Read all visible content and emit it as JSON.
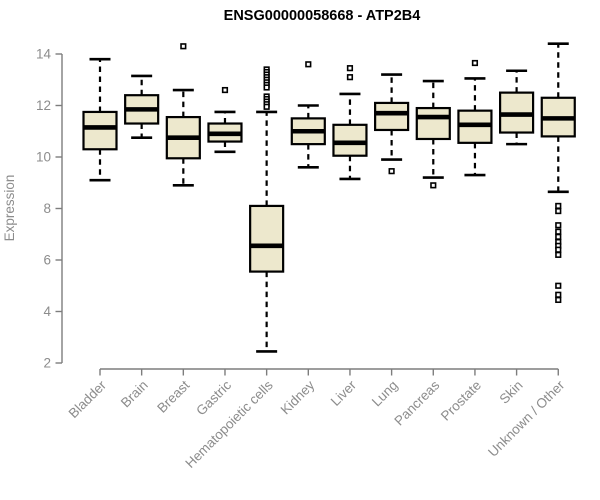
{
  "header": {
    "title": "ENSG00000058668 - ATP2B4"
  },
  "chart_data": {
    "type": "boxplot",
    "title": "ENSG00000058668 - ATP2B4",
    "xlabel": "",
    "ylabel": "Expression",
    "ylim": [
      2,
      14
    ],
    "y_ticks": [
      2,
      4,
      6,
      8,
      10,
      12,
      14
    ],
    "grid": false,
    "legend": "none",
    "categories": [
      "Bladder",
      "Brain",
      "Breast",
      "Gastric",
      "Hematopoietic cells",
      "Kidney",
      "Liver",
      "Lung",
      "Pancreas",
      "Prostate",
      "Skin",
      "Unknown / Other"
    ],
    "series": [
      {
        "name": "Bladder",
        "whisker_low": 9.1,
        "q1": 10.3,
        "median": 11.15,
        "q3": 11.75,
        "whisker_high": 13.8,
        "outliers": []
      },
      {
        "name": "Brain",
        "whisker_low": 10.75,
        "q1": 11.3,
        "median": 11.85,
        "q3": 12.4,
        "whisker_high": 13.15,
        "outliers": []
      },
      {
        "name": "Breast",
        "whisker_low": 8.9,
        "q1": 9.95,
        "median": 10.75,
        "q3": 11.55,
        "whisker_high": 12.6,
        "outliers": [
          14.3
        ]
      },
      {
        "name": "Gastric",
        "whisker_low": 10.2,
        "q1": 10.6,
        "median": 10.9,
        "q3": 11.3,
        "whisker_high": 11.75,
        "outliers": [
          12.6
        ]
      },
      {
        "name": "Hematopoietic cells",
        "whisker_low": 2.45,
        "q1": 5.55,
        "median": 6.55,
        "q3": 8.1,
        "whisker_high": 11.75,
        "outliers": [
          13.4,
          13.3,
          13.2,
          13.1,
          13.0,
          12.9,
          12.8,
          12.7,
          12.35,
          12.25,
          12.15,
          12.05,
          11.95
        ]
      },
      {
        "name": "Kidney",
        "whisker_low": 9.6,
        "q1": 10.5,
        "median": 11.0,
        "q3": 11.5,
        "whisker_high": 12.0,
        "outliers": [
          13.6
        ]
      },
      {
        "name": "Liver",
        "whisker_low": 9.15,
        "q1": 10.05,
        "median": 10.55,
        "q3": 11.25,
        "whisker_high": 12.45,
        "outliers": [
          13.45,
          13.1
        ]
      },
      {
        "name": "Lung",
        "whisker_low": 9.9,
        "q1": 11.05,
        "median": 11.7,
        "q3": 12.1,
        "whisker_high": 13.2,
        "outliers": [
          9.45
        ]
      },
      {
        "name": "Pancreas",
        "whisker_low": 9.2,
        "q1": 10.7,
        "median": 11.55,
        "q3": 11.9,
        "whisker_high": 12.95,
        "outliers": [
          8.9
        ]
      },
      {
        "name": "Prostate",
        "whisker_low": 9.3,
        "q1": 10.55,
        "median": 11.25,
        "q3": 11.8,
        "whisker_high": 13.05,
        "outliers": [
          13.65
        ]
      },
      {
        "name": "Skin",
        "whisker_low": 10.5,
        "q1": 10.95,
        "median": 11.65,
        "q3": 12.5,
        "whisker_high": 13.35,
        "outliers": []
      },
      {
        "name": "Unknown / Other",
        "whisker_low": 8.65,
        "q1": 10.8,
        "median": 11.5,
        "q3": 12.3,
        "whisker_high": 14.4,
        "outliers": [
          8.1,
          7.9,
          7.35,
          7.1,
          6.9,
          6.7,
          6.55,
          6.4,
          6.2,
          5.0,
          4.65,
          4.45
        ]
      }
    ],
    "colors": {
      "box_fill": "#EDE8CD",
      "box_stroke": "#000000",
      "median": "#000000",
      "whisker": "#000000",
      "outlier_stroke": "#000000",
      "axis_line": "#7D7D7D",
      "axis_text": "#8C8C8C",
      "title_text": "#000000",
      "background": "#FFFFFF"
    }
  }
}
